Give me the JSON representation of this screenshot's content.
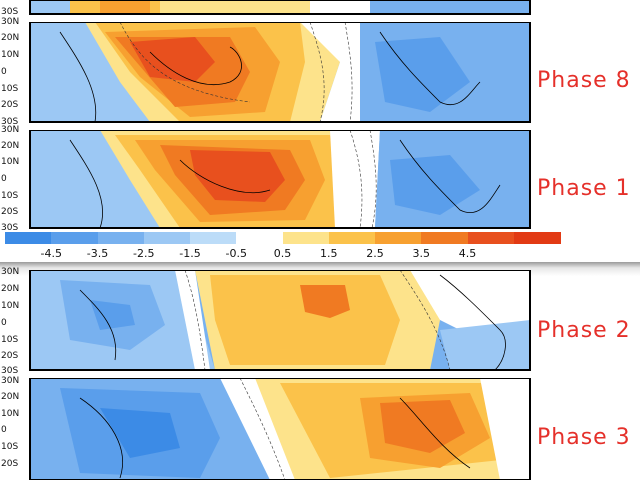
{
  "panels": [
    {
      "id": "top-partial",
      "label": "",
      "lat_labels": [
        "30S"
      ]
    },
    {
      "id": "phase-8",
      "label": "Phase 8",
      "lat_labels": [
        "30N",
        "20N",
        "10N",
        "0",
        "10S",
        "20S",
        "30S"
      ]
    },
    {
      "id": "phase-1",
      "label": "Phase 1",
      "lat_labels": [
        "30N",
        "20N",
        "10N",
        "0",
        "10S",
        "20S",
        "30S"
      ]
    },
    {
      "id": "phase-2",
      "label": "Phase 2",
      "lat_labels": [
        "30N",
        "20N",
        "10N",
        "0",
        "10S",
        "20S",
        "30S"
      ]
    },
    {
      "id": "phase-3",
      "label": "Phase 3",
      "lat_labels": [
        "30N",
        "20N",
        "10N",
        "0",
        "10S",
        "20S"
      ]
    }
  ],
  "colorbar": {
    "ticks": [
      "-4.5",
      "-3.5",
      "-2.5",
      "-1.5",
      "-0.5",
      "0.5",
      "1.5",
      "2.5",
      "3.5",
      "4.5"
    ],
    "colors": [
      "#3c8be6",
      "#5a9eeb",
      "#78b1ef",
      "#9cc8f4",
      "#bcdcf8",
      "#ffffff",
      "#fde38b",
      "#fbc24a",
      "#f7a030",
      "#f07a22",
      "#e8501e",
      "#e23a14"
    ]
  },
  "colors": {
    "neg_strong": "#3c8be6",
    "neg_mid": "#78b1ef",
    "neg_light": "#bcdcf8",
    "pos_light": "#fde38b",
    "pos_mid": "#fbc24a",
    "pos_orange": "#f7a030",
    "pos_strong": "#e8501e",
    "label": "#e5302a"
  }
}
